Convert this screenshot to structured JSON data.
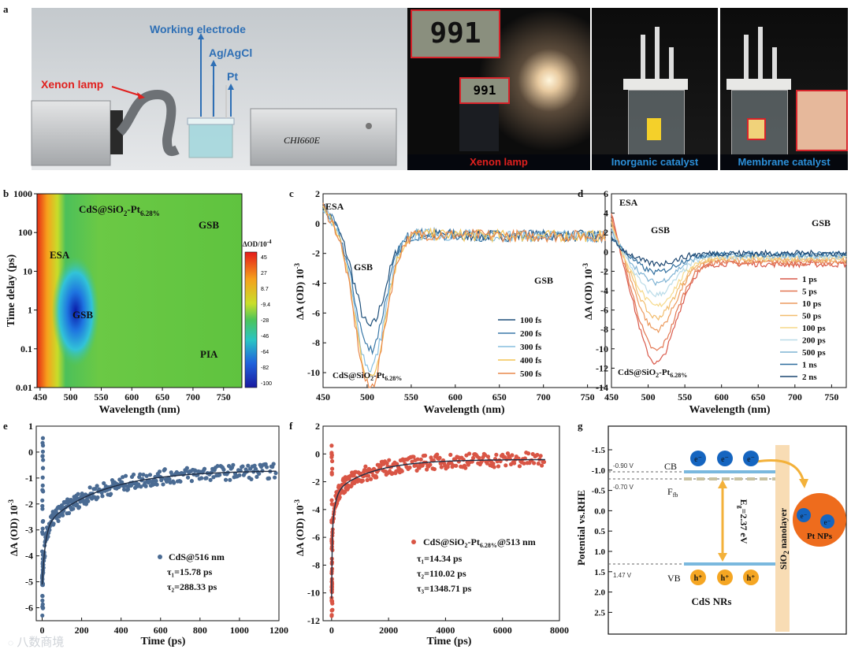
{
  "panels": {
    "a": "a",
    "b": "b",
    "c": "c",
    "d": "d",
    "e": "e",
    "f": "f",
    "g": "g"
  },
  "panel_a": {
    "labels": {
      "working": "Working electrode",
      "agagcl": "Ag/AgCl",
      "pt": "Pt",
      "xenon": "Xenon lamp",
      "instrument": "CHI660E"
    },
    "meter_reading": "991",
    "meter_small": "991",
    "captions": [
      {
        "text": "Xenon lamp",
        "color": "#e0201e"
      },
      {
        "text": "Inorganic catalyst",
        "color": "#2c8fd8"
      },
      {
        "text": "Membrane catalyst",
        "color": "#2c8fd8"
      }
    ]
  },
  "panel_b": {
    "title": "CdS@SiO",
    "title_sub2": "2",
    "title_pt": "-Pt",
    "title_sub": "6.28%",
    "xlabel": "Wavelength (nm)",
    "ylabel": "Time delay (ps)",
    "xticks": [
      "450",
      "500",
      "550",
      "600",
      "650",
      "700",
      "750"
    ],
    "yticks": [
      "1000",
      "100",
      "10",
      "1",
      "0.1",
      "0.01"
    ],
    "annotations": {
      "esa": "ESA",
      "gsb1": "GSB",
      "gsb2": "GSB",
      "pia": "PIA"
    },
    "colorbar": {
      "label": "ΔOD/10",
      "label_exp": "-4",
      "ticks": [
        "45",
        "27",
        "8.7",
        "-9.4",
        "-28",
        "-46",
        "-64",
        "-82",
        "-100"
      ]
    }
  },
  "chart_data": [
    {
      "type": "line",
      "panel": "c",
      "xlabel": "Wavelength (nm)",
      "ylabel": "ΔA (OD) 10",
      "ylabel_exp": "-3",
      "xlim": [
        450,
        770
      ],
      "ylim": [
        -11,
        2
      ],
      "xticks": [
        "450",
        "500",
        "550",
        "600",
        "650",
        "700",
        "750"
      ],
      "yticks": [
        "2",
        "0",
        "-2",
        "-4",
        "-6",
        "-8",
        "-10"
      ],
      "annotations": [
        "ESA",
        "GSB",
        "GSB"
      ],
      "sample": "CdS@SiO2-Pt6.28%",
      "series": [
        {
          "name": "100 fs",
          "color": "#1d4f7a",
          "min": -6.5
        },
        {
          "name": "200 fs",
          "color": "#3a78a8",
          "min": -8.0
        },
        {
          "name": "300 fs",
          "color": "#86bedf",
          "min": -9.3
        },
        {
          "name": "400 fs",
          "color": "#f3c454",
          "min": -10.0
        },
        {
          "name": "500 fs",
          "color": "#e9894c",
          "min": -10.6
        }
      ]
    },
    {
      "type": "line",
      "panel": "d",
      "xlabel": "Wavelength (nm)",
      "ylabel": "ΔA (OD) 10",
      "ylabel_exp": "-3",
      "xlim": [
        450,
        770
      ],
      "ylim": [
        -14,
        6
      ],
      "xticks": [
        "450",
        "500",
        "550",
        "600",
        "650",
        "700",
        "750"
      ],
      "yticks": [
        "6",
        "4",
        "2",
        "0",
        "-2",
        "-4",
        "-6",
        "-8",
        "-10",
        "-12",
        "-14"
      ],
      "annotations": [
        "ESA",
        "GSB",
        "GSB"
      ],
      "sample": "CdS@SiO2-Pt6.28%",
      "series": [
        {
          "name": "1 ps",
          "color": "#d9584a",
          "min": -10.8
        },
        {
          "name": "5 ps",
          "color": "#e37752",
          "min": -9.6
        },
        {
          "name": "10 ps",
          "color": "#ec9a5e",
          "min": -7.6
        },
        {
          "name": "50 ps",
          "color": "#f2bd6e",
          "min": -6.4
        },
        {
          "name": "100 ps",
          "color": "#f6d98a",
          "min": -5.3
        },
        {
          "name": "200 ps",
          "color": "#b9dbe8",
          "min": -4.2
        },
        {
          "name": "500 ps",
          "color": "#7fb3d4",
          "min": -3.0
        },
        {
          "name": "1 ns",
          "color": "#2f6e9e",
          "min": -2.0
        },
        {
          "name": "2 ns",
          "color": "#1c4670",
          "min": -1.2
        }
      ]
    },
    {
      "type": "scatter",
      "panel": "e",
      "xlabel": "Time (ps)",
      "ylabel": "ΔA (OD) 10",
      "ylabel_exp": "-3",
      "xlim": [
        -30,
        1200
      ],
      "ylim": [
        -6.5,
        1
      ],
      "xticks": [
        "0",
        "200",
        "400",
        "600",
        "800",
        "1000",
        "1200"
      ],
      "yticks": [
        "1",
        "0",
        "-1",
        "-2",
        "-3",
        "-4",
        "-5",
        "-6"
      ],
      "legend": "CdS@516 nm",
      "fit": [
        "τ₁=15.78 ps",
        "τ₂=288.33 ps"
      ],
      "color": "#4a6b93"
    },
    {
      "type": "scatter",
      "panel": "f",
      "xlabel": "Time (ps)",
      "ylabel": "ΔA (OD) 10",
      "ylabel_exp": "-3",
      "xlim": [
        -300,
        8000
      ],
      "ylim": [
        -12,
        2
      ],
      "xticks": [
        "0",
        "2000",
        "4000",
        "6000",
        "8000"
      ],
      "yticks": [
        "2",
        "0",
        "-2",
        "-4",
        "-6",
        "-8",
        "-10",
        "-12"
      ],
      "legend": "CdS@SiO2-Pt6.28%@513 nm",
      "fit": [
        "τ₁=14.34 ps",
        "τ₂=110.02 ps",
        "τ₃=1348.71 ps"
      ],
      "color": "#d95545"
    }
  ],
  "panel_g": {
    "ylabel": "Potential vs.RHE",
    "yticks": [
      "-1.5",
      "-1.0",
      "-0.5",
      "0.0",
      "0.5",
      "1.0",
      "1.5",
      "2.0",
      "2.5"
    ],
    "cb": "CB",
    "vb": "VB",
    "efb": "F",
    "efb_sub": "fb",
    "cb_v": "-0.90 V",
    "efb_v": "-0.70 V",
    "vb_v": "1.47 V",
    "eg": "E",
    "eg_sub": "g",
    "eg_val": "=2.37 eV",
    "electron": "e⁻",
    "hole": "h⁺",
    "sio2": "SiO",
    "sio2_sub": "2",
    "sio2_rest": " nanolayer",
    "cds": "CdS NRs",
    "pt": "Pt NPs"
  },
  "watermark": "八数商境"
}
